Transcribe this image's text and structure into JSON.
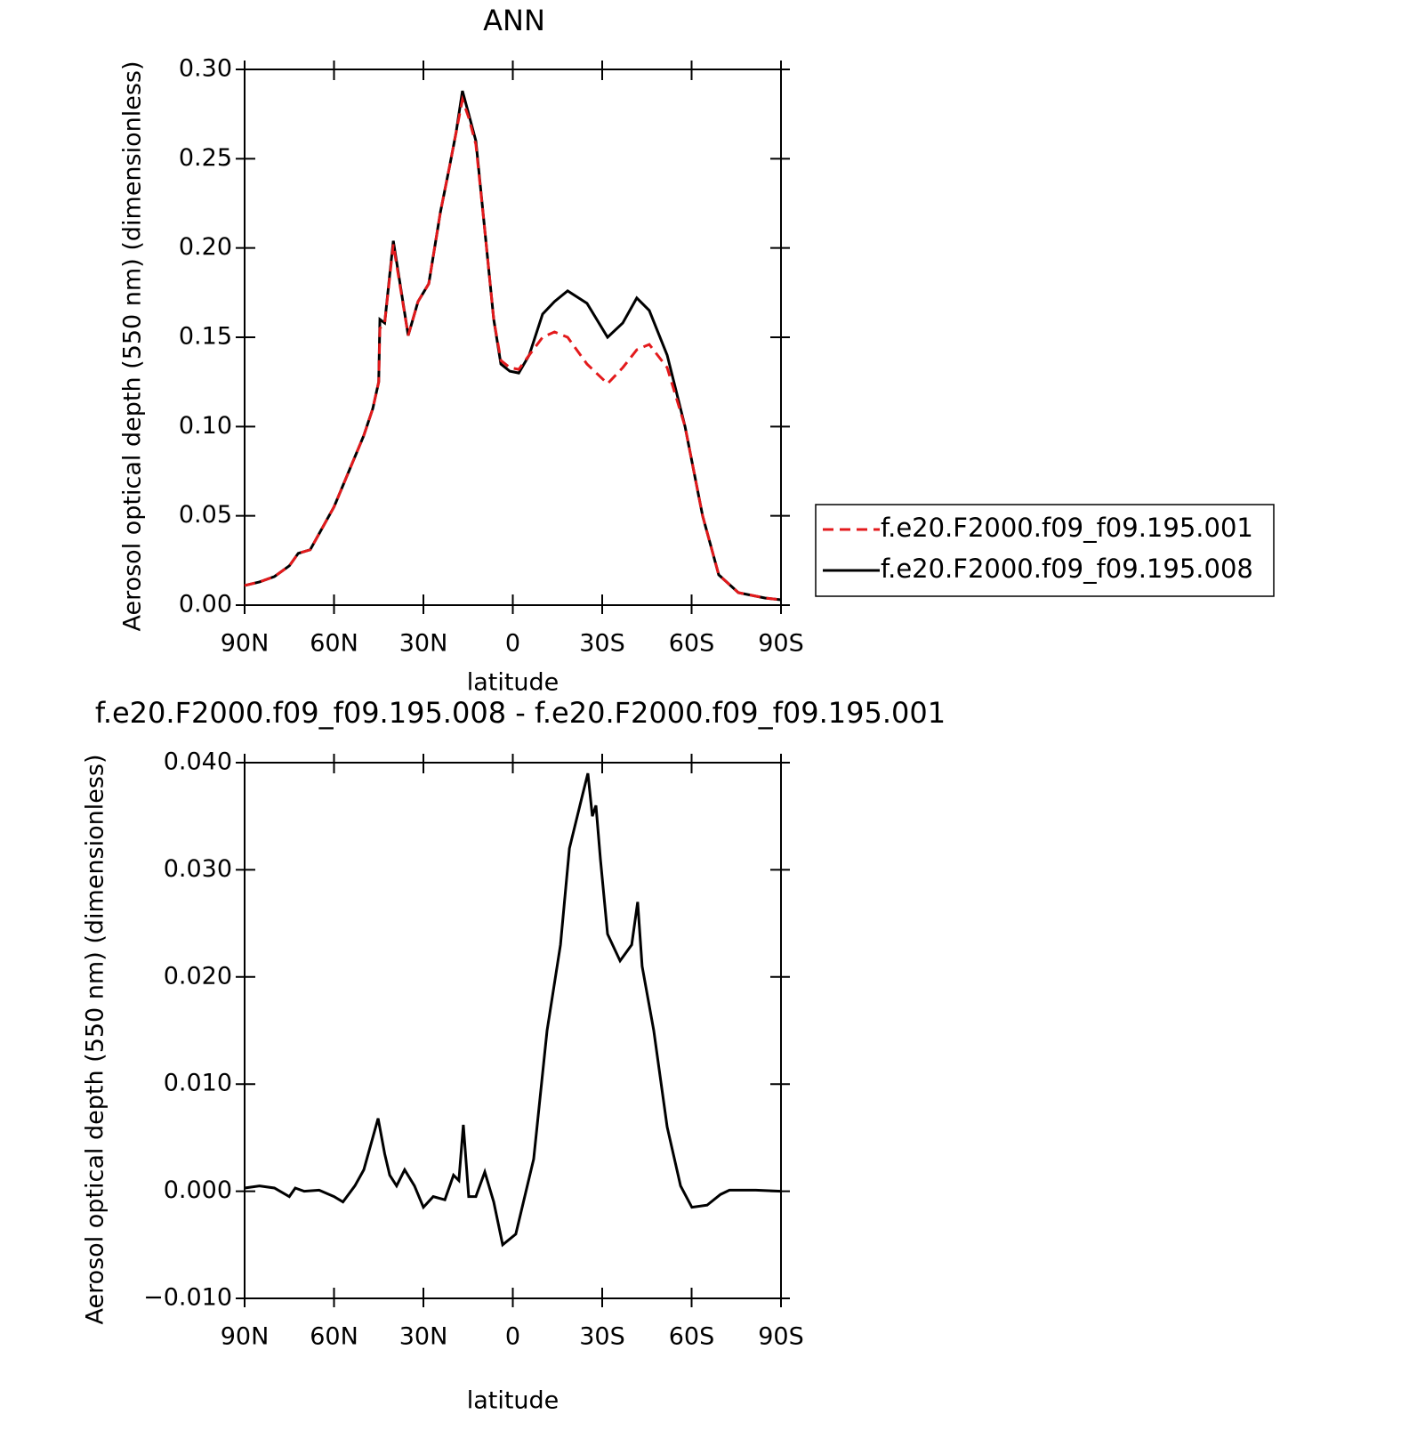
{
  "chart_data": [
    {
      "type": "line",
      "title": "ANN",
      "ylabel": "Aerosol optical depth (550 nm) (dimensionless)",
      "xlabel": "latitude",
      "x": [
        90,
        85,
        80,
        75,
        72,
        68,
        65,
        60,
        55,
        50,
        47,
        45,
        44.6,
        43,
        40.1,
        35.1,
        31.8,
        28.2,
        24.3,
        21.3,
        19,
        16.9,
        14.8,
        12.4,
        9.4,
        6.4,
        4,
        1,
        -2,
        -5.5,
        -10,
        -14,
        -18.4,
        -24.9,
        -31.8,
        -36.9,
        -41.6,
        -45.8,
        -51.8,
        -57.8,
        -63.7,
        -69.1,
        -75.7,
        -84.6,
        -90
      ],
      "series": [
        {
          "name": "f.e20.F2000.f09_f09.195.001",
          "color": "#e31a1c",
          "line_style": "dashed",
          "values": [
            0.011,
            0.013,
            0.016,
            0.022,
            0.029,
            0.031,
            0.04,
            0.055,
            0.075,
            0.095,
            0.11,
            0.125,
            0.155,
            0.158,
            0.202,
            0.151,
            0.17,
            0.18,
            0.22,
            0.245,
            0.265,
            0.283,
            0.273,
            0.258,
            0.21,
            0.16,
            0.137,
            0.133,
            0.132,
            0.14,
            0.15,
            0.153,
            0.15,
            0.135,
            0.124,
            0.133,
            0.143,
            0.146,
            0.133,
            0.1,
            0.05,
            0.017,
            0.007,
            0.004,
            0.003
          ]
        },
        {
          "name": "f.e20.F2000.f09_f09.195.008",
          "color": "#000000",
          "line_style": "solid",
          "values": [
            0.011,
            0.013,
            0.016,
            0.022,
            0.029,
            0.031,
            0.04,
            0.055,
            0.075,
            0.095,
            0.11,
            0.125,
            0.16,
            0.158,
            0.204,
            0.151,
            0.17,
            0.18,
            0.22,
            0.245,
            0.265,
            0.288,
            0.275,
            0.26,
            0.21,
            0.16,
            0.135,
            0.131,
            0.13,
            0.14,
            0.163,
            0.17,
            0.176,
            0.169,
            0.15,
            0.158,
            0.172,
            0.165,
            0.14,
            0.1,
            0.05,
            0.017,
            0.007,
            0.004,
            0.003
          ]
        }
      ],
      "xlim": [
        90,
        -90
      ],
      "xticks": [
        {
          "value": 90,
          "label": "90N"
        },
        {
          "value": 60,
          "label": "60N"
        },
        {
          "value": 30,
          "label": "30N"
        },
        0,
        {
          "value": -30,
          "label": "30S"
        },
        {
          "value": -60,
          "label": "60S"
        },
        {
          "value": -90,
          "label": "90S"
        }
      ],
      "ylim": [
        0,
        0.3
      ],
      "yticks": [
        {
          "value": 0,
          "label": "0.00"
        },
        {
          "value": 0.05,
          "label": "0.05"
        },
        {
          "value": 0.1,
          "label": "0.10"
        },
        {
          "value": 0.15,
          "label": "0.15"
        },
        {
          "value": 0.2,
          "label": "0.20"
        },
        {
          "value": 0.25,
          "label": "0.25"
        },
        {
          "value": 0.3,
          "label": "0.30"
        }
      ],
      "legend": "right"
    },
    {
      "type": "line",
      "title": "f.e20.F2000.f09_f09.195.008 - f.e20.F2000.f09_f09.195.001",
      "ylabel": "Aerosol optical depth (550 nm) (dimensionless)",
      "xlabel": "latitude",
      "x": [
        90,
        85,
        80,
        75,
        73,
        70,
        65,
        60,
        57,
        53,
        50,
        45.2,
        43,
        41.3,
        39,
        36.3,
        33,
        30,
        26.7,
        22.8,
        19.9,
        18.1,
        16.6,
        14.8,
        12.4,
        9.4,
        6.4,
        3.4,
        -1,
        -7,
        -11.5,
        -16,
        -19,
        -23.4,
        -25.2,
        -26.7,
        -27.9,
        -29.4,
        -31.8,
        -36,
        -39.9,
        -41.9,
        -43.4,
        -47.3,
        -51.8,
        -56.3,
        -60.1,
        -65.2,
        -69.7,
        -72.7,
        -81.6,
        -90
      ],
      "series": [
        {
          "color": "#000000",
          "values": [
            0.0003,
            0.0005,
            0.0003,
            -0.0005,
            0.0003,
            0,
            0.0001,
            -0.0005,
            -0.001,
            0.0005,
            0.002,
            0.0068,
            0.0035,
            0.0015,
            0.0005,
            0.002,
            0.0005,
            -0.0015,
            -0.0005,
            -0.0008,
            0.0015,
            0.001,
            0.0062,
            -0.0005,
            -0.0005,
            0.0018,
            -0.001,
            -0.005,
            -0.004,
            0.003,
            0.015,
            0.023,
            0.032,
            0.037,
            0.039,
            0.035,
            0.036,
            0.031,
            0.024,
            0.0215,
            0.023,
            0.027,
            0.021,
            0.015,
            0.006,
            0.0005,
            -0.0015,
            -0.0013,
            -0.0003,
            0.0001,
            0.0001,
            0
          ]
        }
      ],
      "xlim": [
        90,
        -90
      ],
      "xticks": [
        {
          "value": 90,
          "label": "90N"
        },
        {
          "value": 60,
          "label": "60N"
        },
        {
          "value": 30,
          "label": "30N"
        },
        0,
        {
          "value": -30,
          "label": "30S"
        },
        {
          "value": -60,
          "label": "60S"
        },
        {
          "value": -90,
          "label": "90S"
        }
      ],
      "ylim": [
        -0.01,
        0.04
      ],
      "yticks": [
        {
          "value": -0.01,
          "label": "−0.010"
        },
        {
          "value": 0,
          "label": "0.000"
        },
        {
          "value": 0.01,
          "label": "0.010"
        },
        {
          "value": 0.02,
          "label": "0.020"
        },
        {
          "value": 0.03,
          "label": "0.030"
        },
        {
          "value": 0.04,
          "label": "0.040"
        }
      ]
    }
  ]
}
